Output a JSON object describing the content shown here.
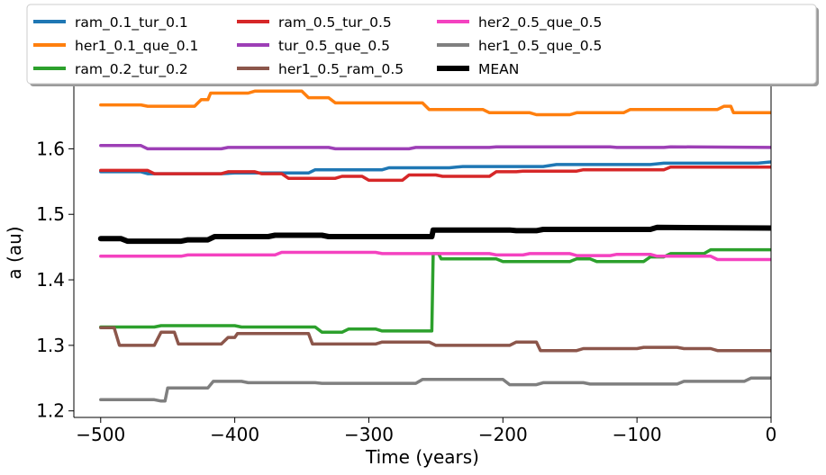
{
  "chart_data": {
    "type": "line",
    "xlabel": "Time (years)",
    "ylabel": "a (au)",
    "xlim": [
      -520,
      0
    ],
    "ylim": [
      1.19,
      1.72
    ],
    "xticks": [
      -500,
      -400,
      -300,
      -200,
      -100,
      0
    ],
    "xtick_labels": [
      "−500",
      "−400",
      "−300",
      "−200",
      "−100",
      "0"
    ],
    "yticks": [
      1.2,
      1.3,
      1.4,
      1.5,
      1.6
    ],
    "ytick_labels": [
      "1.2",
      "1.3",
      "1.4",
      "1.5",
      "1.6"
    ],
    "grid": false,
    "legend_position": "top",
    "series": [
      {
        "name": "ram_0.1_tur_0.1",
        "color": "#1f77b4",
        "points": [
          [
            -500,
            1.565
          ],
          [
            -470,
            1.565
          ],
          [
            -465,
            1.562
          ],
          [
            -410,
            1.562
          ],
          [
            -400,
            1.563
          ],
          [
            -345,
            1.563
          ],
          [
            -340,
            1.568
          ],
          [
            -290,
            1.568
          ],
          [
            -285,
            1.571
          ],
          [
            -240,
            1.571
          ],
          [
            -230,
            1.573
          ],
          [
            -170,
            1.573
          ],
          [
            -160,
            1.576
          ],
          [
            -90,
            1.576
          ],
          [
            -80,
            1.578
          ],
          [
            -10,
            1.578
          ],
          [
            0,
            1.58
          ]
        ]
      },
      {
        "name": "her1_0.1_que_0.1",
        "color": "#ff7f0e",
        "points": [
          [
            -500,
            1.667
          ],
          [
            -470,
            1.667
          ],
          [
            -465,
            1.665
          ],
          [
            -430,
            1.665
          ],
          [
            -425,
            1.675
          ],
          [
            -420,
            1.675
          ],
          [
            -418,
            1.685
          ],
          [
            -390,
            1.685
          ],
          [
            -385,
            1.688
          ],
          [
            -350,
            1.688
          ],
          [
            -345,
            1.678
          ],
          [
            -330,
            1.678
          ],
          [
            -325,
            1.67
          ],
          [
            -260,
            1.67
          ],
          [
            -255,
            1.66
          ],
          [
            -215,
            1.66
          ],
          [
            -210,
            1.655
          ],
          [
            -180,
            1.655
          ],
          [
            -175,
            1.652
          ],
          [
            -150,
            1.652
          ],
          [
            -145,
            1.655
          ],
          [
            -110,
            1.655
          ],
          [
            -105,
            1.66
          ],
          [
            -40,
            1.66
          ],
          [
            -35,
            1.665
          ],
          [
            -30,
            1.665
          ],
          [
            -28,
            1.655
          ],
          [
            0,
            1.655
          ]
        ]
      },
      {
        "name": "ram_0.2_tur_0.2",
        "color": "#2ca02c",
        "points": [
          [
            -500,
            1.328
          ],
          [
            -460,
            1.328
          ],
          [
            -455,
            1.33
          ],
          [
            -400,
            1.33
          ],
          [
            -395,
            1.328
          ],
          [
            -340,
            1.328
          ],
          [
            -335,
            1.32
          ],
          [
            -320,
            1.32
          ],
          [
            -315,
            1.325
          ],
          [
            -295,
            1.325
          ],
          [
            -290,
            1.322
          ],
          [
            -253,
            1.322
          ],
          [
            -252,
            1.44
          ],
          [
            -248,
            1.44
          ],
          [
            -246,
            1.432
          ],
          [
            -205,
            1.432
          ],
          [
            -200,
            1.428
          ],
          [
            -150,
            1.428
          ],
          [
            -145,
            1.432
          ],
          [
            -135,
            1.432
          ],
          [
            -130,
            1.428
          ],
          [
            -95,
            1.428
          ],
          [
            -90,
            1.435
          ],
          [
            -80,
            1.435
          ],
          [
            -75,
            1.44
          ],
          [
            -50,
            1.44
          ],
          [
            -45,
            1.446
          ],
          [
            0,
            1.446
          ]
        ]
      },
      {
        "name": "ram_0.5_tur_0.5",
        "color": "#d62728",
        "points": [
          [
            -500,
            1.567
          ],
          [
            -465,
            1.567
          ],
          [
            -460,
            1.562
          ],
          [
            -410,
            1.562
          ],
          [
            -405,
            1.565
          ],
          [
            -385,
            1.565
          ],
          [
            -380,
            1.562
          ],
          [
            -365,
            1.562
          ],
          [
            -360,
            1.555
          ],
          [
            -325,
            1.555
          ],
          [
            -320,
            1.558
          ],
          [
            -305,
            1.558
          ],
          [
            -300,
            1.552
          ],
          [
            -275,
            1.552
          ],
          [
            -270,
            1.56
          ],
          [
            -250,
            1.56
          ],
          [
            -245,
            1.558
          ],
          [
            -210,
            1.558
          ],
          [
            -205,
            1.565
          ],
          [
            -190,
            1.565
          ],
          [
            -185,
            1.566
          ],
          [
            -145,
            1.566
          ],
          [
            -140,
            1.568
          ],
          [
            -80,
            1.568
          ],
          [
            -75,
            1.572
          ],
          [
            0,
            1.572
          ]
        ]
      },
      {
        "name": "tur_0.5_que_0.5",
        "color": "#9d3fb6",
        "points": [
          [
            -500,
            1.605
          ],
          [
            -470,
            1.605
          ],
          [
            -465,
            1.6
          ],
          [
            -410,
            1.6
          ],
          [
            -405,
            1.602
          ],
          [
            -330,
            1.602
          ],
          [
            -325,
            1.6
          ],
          [
            -270,
            1.6
          ],
          [
            -265,
            1.602
          ],
          [
            -210,
            1.602
          ],
          [
            -205,
            1.603
          ],
          [
            -120,
            1.603
          ],
          [
            -115,
            1.602
          ],
          [
            -80,
            1.602
          ],
          [
            -75,
            1.603
          ],
          [
            0,
            1.602
          ]
        ]
      },
      {
        "name": "her1_0.5_ram_0.5",
        "color": "#8c564b",
        "points": [
          [
            -500,
            1.327
          ],
          [
            -490,
            1.327
          ],
          [
            -486,
            1.3
          ],
          [
            -460,
            1.3
          ],
          [
            -455,
            1.32
          ],
          [
            -445,
            1.32
          ],
          [
            -442,
            1.302
          ],
          [
            -410,
            1.302
          ],
          [
            -405,
            1.312
          ],
          [
            -400,
            1.312
          ],
          [
            -398,
            1.318
          ],
          [
            -345,
            1.318
          ],
          [
            -342,
            1.302
          ],
          [
            -295,
            1.302
          ],
          [
            -290,
            1.305
          ],
          [
            -255,
            1.305
          ],
          [
            -250,
            1.3
          ],
          [
            -195,
            1.3
          ],
          [
            -190,
            1.305
          ],
          [
            -175,
            1.305
          ],
          [
            -172,
            1.292
          ],
          [
            -145,
            1.292
          ],
          [
            -140,
            1.295
          ],
          [
            -100,
            1.295
          ],
          [
            -95,
            1.297
          ],
          [
            -70,
            1.297
          ],
          [
            -65,
            1.295
          ],
          [
            -45,
            1.295
          ],
          [
            -40,
            1.292
          ],
          [
            0,
            1.292
          ]
        ]
      },
      {
        "name": "her2_0.5_que_0.5",
        "color": "#f442c0",
        "points": [
          [
            -500,
            1.436
          ],
          [
            -440,
            1.436
          ],
          [
            -435,
            1.438
          ],
          [
            -370,
            1.438
          ],
          [
            -365,
            1.442
          ],
          [
            -295,
            1.442
          ],
          [
            -290,
            1.44
          ],
          [
            -210,
            1.44
          ],
          [
            -205,
            1.438
          ],
          [
            -185,
            1.438
          ],
          [
            -180,
            1.44
          ],
          [
            -150,
            1.44
          ],
          [
            -145,
            1.437
          ],
          [
            -120,
            1.437
          ],
          [
            -115,
            1.439
          ],
          [
            -90,
            1.439
          ],
          [
            -85,
            1.436
          ],
          [
            -45,
            1.436
          ],
          [
            -40,
            1.431
          ],
          [
            0,
            1.431
          ]
        ]
      },
      {
        "name": "her1_0.5_que_0.5",
        "color": "#7f7f7f",
        "points": [
          [
            -500,
            1.217
          ],
          [
            -460,
            1.217
          ],
          [
            -455,
            1.215
          ],
          [
            -452,
            1.215
          ],
          [
            -450,
            1.235
          ],
          [
            -420,
            1.235
          ],
          [
            -416,
            1.245
          ],
          [
            -395,
            1.245
          ],
          [
            -390,
            1.243
          ],
          [
            -340,
            1.243
          ],
          [
            -335,
            1.242
          ],
          [
            -265,
            1.242
          ],
          [
            -260,
            1.248
          ],
          [
            -200,
            1.248
          ],
          [
            -195,
            1.24
          ],
          [
            -175,
            1.24
          ],
          [
            -170,
            1.243
          ],
          [
            -140,
            1.243
          ],
          [
            -135,
            1.241
          ],
          [
            -70,
            1.241
          ],
          [
            -65,
            1.245
          ],
          [
            -20,
            1.245
          ],
          [
            -15,
            1.25
          ],
          [
            0,
            1.25
          ]
        ]
      },
      {
        "name": "MEAN",
        "color": "#000000",
        "thick": true,
        "points": [
          [
            -500,
            1.463
          ],
          [
            -485,
            1.463
          ],
          [
            -480,
            1.459
          ],
          [
            -440,
            1.459
          ],
          [
            -435,
            1.461
          ],
          [
            -420,
            1.461
          ],
          [
            -415,
            1.466
          ],
          [
            -375,
            1.466
          ],
          [
            -370,
            1.468
          ],
          [
            -335,
            1.468
          ],
          [
            -330,
            1.466
          ],
          [
            -253,
            1.466
          ],
          [
            -252,
            1.476
          ],
          [
            -195,
            1.476
          ],
          [
            -190,
            1.475
          ],
          [
            -175,
            1.475
          ],
          [
            -170,
            1.477
          ],
          [
            -90,
            1.477
          ],
          [
            -85,
            1.48
          ],
          [
            0,
            1.479
          ]
        ]
      }
    ]
  }
}
